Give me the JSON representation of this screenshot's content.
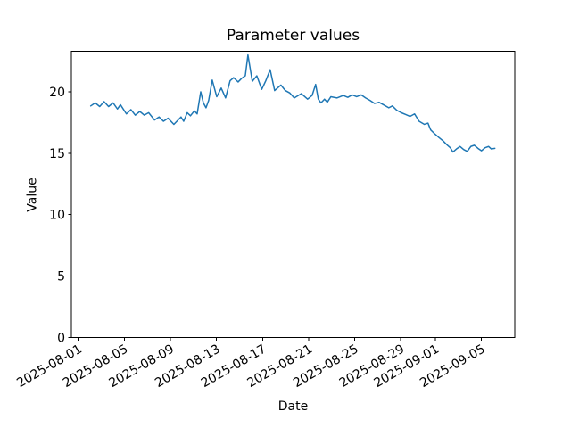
{
  "chart_data": {
    "type": "line",
    "title": "Parameter values",
    "xlabel": "Date",
    "ylabel": "Value",
    "x_unit": "days since 2025-08-01",
    "xlim": [
      -0.6,
      37.9
    ],
    "ylim": [
      0,
      23.3
    ],
    "grid": false,
    "legend": null,
    "line_color": "#1f77b4",
    "x_tick_days": [
      0,
      4,
      8,
      12,
      16,
      20,
      24,
      28,
      31,
      35
    ],
    "x_tick_labels": [
      "2025-08-01",
      "2025-08-05",
      "2025-08-09",
      "2025-08-13",
      "2025-08-17",
      "2025-08-21",
      "2025-08-25",
      "2025-08-29",
      "2025-09-01",
      "2025-09-05"
    ],
    "y_ticks": [
      0,
      5,
      10,
      15,
      20
    ],
    "points": [
      [
        1.08,
        18.85
      ],
      [
        1.47,
        19.1
      ],
      [
        1.86,
        18.8
      ],
      [
        2.24,
        19.2
      ],
      [
        2.63,
        18.8
      ],
      [
        3.02,
        19.1
      ],
      [
        3.4,
        18.6
      ],
      [
        3.66,
        18.95
      ],
      [
        4.18,
        18.2
      ],
      [
        4.57,
        18.55
      ],
      [
        4.95,
        18.1
      ],
      [
        5.34,
        18.4
      ],
      [
        5.73,
        18.1
      ],
      [
        6.11,
        18.3
      ],
      [
        6.62,
        17.7
      ],
      [
        7.01,
        17.95
      ],
      [
        7.4,
        17.6
      ],
      [
        7.79,
        17.85
      ],
      [
        8.3,
        17.35
      ],
      [
        8.92,
        17.95
      ],
      [
        9.15,
        17.6
      ],
      [
        9.46,
        18.3
      ],
      [
        9.74,
        18.05
      ],
      [
        10.08,
        18.45
      ],
      [
        10.32,
        18.2
      ],
      [
        10.63,
        20.0
      ],
      [
        10.86,
        19.1
      ],
      [
        11.09,
        18.7
      ],
      [
        11.32,
        19.3
      ],
      [
        11.63,
        20.95
      ],
      [
        12.02,
        19.6
      ],
      [
        12.41,
        20.3
      ],
      [
        12.79,
        19.5
      ],
      [
        13.18,
        20.9
      ],
      [
        13.49,
        21.15
      ],
      [
        13.88,
        20.8
      ],
      [
        14.19,
        21.1
      ],
      [
        14.5,
        21.3
      ],
      [
        14.73,
        23.0
      ],
      [
        15.11,
        20.85
      ],
      [
        15.5,
        21.3
      ],
      [
        15.93,
        20.2
      ],
      [
        16.28,
        20.9
      ],
      [
        16.66,
        21.8
      ],
      [
        17.05,
        20.1
      ],
      [
        17.59,
        20.55
      ],
      [
        17.98,
        20.1
      ],
      [
        18.37,
        19.9
      ],
      [
        18.75,
        19.5
      ],
      [
        19.37,
        19.85
      ],
      [
        19.91,
        19.4
      ],
      [
        20.3,
        19.7
      ],
      [
        20.61,
        20.6
      ],
      [
        20.84,
        19.4
      ],
      [
        21.07,
        19.1
      ],
      [
        21.38,
        19.4
      ],
      [
        21.62,
        19.15
      ],
      [
        21.93,
        19.6
      ],
      [
        22.47,
        19.5
      ],
      [
        23.01,
        19.7
      ],
      [
        23.4,
        19.55
      ],
      [
        23.78,
        19.75
      ],
      [
        24.17,
        19.6
      ],
      [
        24.56,
        19.75
      ],
      [
        24.95,
        19.5
      ],
      [
        25.33,
        19.3
      ],
      [
        25.72,
        19.05
      ],
      [
        26.11,
        19.15
      ],
      [
        26.49,
        18.95
      ],
      [
        26.96,
        18.7
      ],
      [
        27.27,
        18.85
      ],
      [
        27.65,
        18.5
      ],
      [
        28.04,
        18.3
      ],
      [
        28.43,
        18.15
      ],
      [
        28.81,
        18.0
      ],
      [
        29.2,
        18.2
      ],
      [
        29.59,
        17.6
      ],
      [
        30.05,
        17.35
      ],
      [
        30.36,
        17.45
      ],
      [
        30.6,
        16.9
      ],
      [
        30.98,
        16.55
      ],
      [
        31.29,
        16.3
      ],
      [
        31.68,
        16.0
      ],
      [
        31.99,
        15.7
      ],
      [
        32.3,
        15.45
      ],
      [
        32.53,
        15.1
      ],
      [
        32.84,
        15.35
      ],
      [
        33.15,
        15.55
      ],
      [
        33.46,
        15.3
      ],
      [
        33.77,
        15.15
      ],
      [
        34.08,
        15.55
      ],
      [
        34.39,
        15.65
      ],
      [
        34.7,
        15.4
      ],
      [
        35.01,
        15.2
      ],
      [
        35.32,
        15.45
      ],
      [
        35.63,
        15.55
      ],
      [
        35.86,
        15.35
      ],
      [
        36.17,
        15.4
      ]
    ]
  }
}
